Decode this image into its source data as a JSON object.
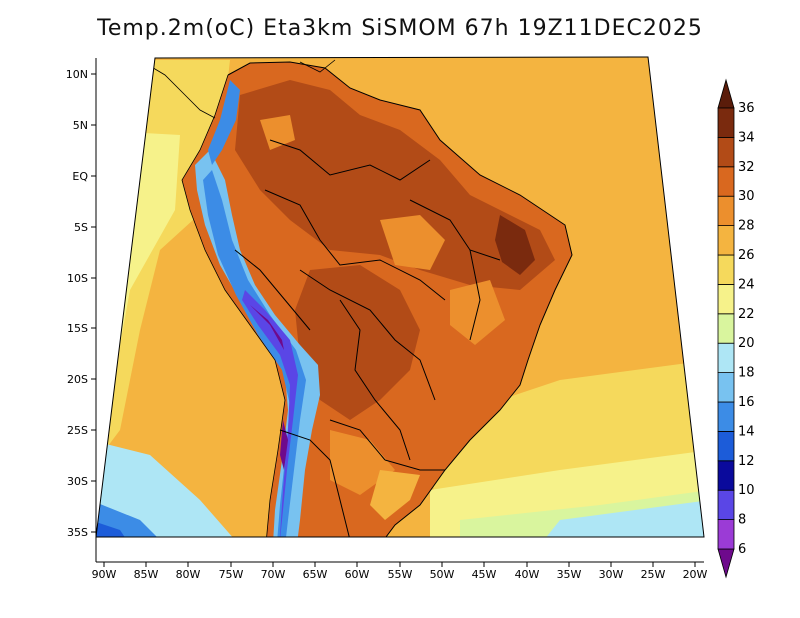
{
  "title": "Temp.2m(oC) Eta3km SiSMOM 67h 19Z11DEC2025",
  "map": {
    "variable": "2 m temperature",
    "units": "oC",
    "lat_labels": [
      "10N",
      "5N",
      "EQ",
      "5S",
      "10S",
      "15S",
      "20S",
      "25S",
      "30S",
      "35S"
    ],
    "lon_labels": [
      "90W",
      "85W",
      "80W",
      "75W",
      "70W",
      "65W",
      "60W",
      "55W",
      "50W",
      "45W",
      "40W",
      "35W",
      "30W",
      "25W",
      "20W"
    ]
  },
  "colorbar": {
    "levels": [
      "6",
      "8",
      "10",
      "12",
      "14",
      "16",
      "18",
      "20",
      "22",
      "24",
      "26",
      "28",
      "30",
      "32",
      "34",
      "36"
    ],
    "colors": [
      "#6e0a8c",
      "#9b3bd6",
      "#5a46e6",
      "#0a0a9c",
      "#1c5cd9",
      "#3c8ce6",
      "#78c2f0",
      "#aee6f5",
      "#d9f59e",
      "#f6f28a",
      "#f5d95c",
      "#f4b440",
      "#ec8f2d",
      "#d9681f",
      "#b24b17",
      "#7a2a0e",
      "#5a1c0a"
    ]
  }
}
